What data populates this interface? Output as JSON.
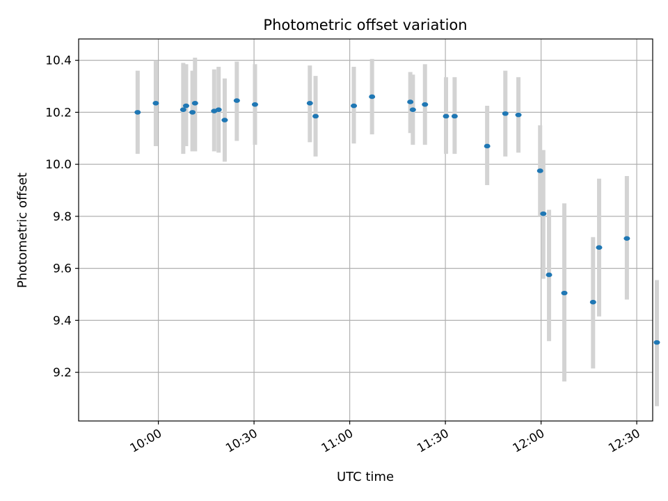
{
  "chart_data": {
    "type": "scatter",
    "title": "Photometric offset variation",
    "xlabel": "UTC time",
    "ylabel": "Photometric offset",
    "grid": true,
    "x_unit": "minutes since 00:00 UTC",
    "xlim": [
      575,
      755
    ],
    "ylim": [
      9.013,
      10.482
    ],
    "x_ticks": [
      {
        "value": 600,
        "label": "10:00"
      },
      {
        "value": 630,
        "label": "10:30"
      },
      {
        "value": 660,
        "label": "11:00"
      },
      {
        "value": 690,
        "label": "11:30"
      },
      {
        "value": 720,
        "label": "12:00"
      },
      {
        "value": 750,
        "label": "12:30"
      }
    ],
    "y_ticks": [
      {
        "value": 9.2,
        "label": "9.2"
      },
      {
        "value": 9.4,
        "label": "9.4"
      },
      {
        "value": 9.6,
        "label": "9.6"
      },
      {
        "value": 9.8,
        "label": "9.8"
      },
      {
        "value": 10.0,
        "label": "10.0"
      },
      {
        "value": 10.2,
        "label": "10.2"
      },
      {
        "value": 10.4,
        "label": "10.4"
      }
    ],
    "point_color": "#1f77b4",
    "errorbar_color": "#d3d3d3",
    "points": [
      {
        "x": 593.5,
        "y": 10.2,
        "lo": 10.04,
        "hi": 10.36
      },
      {
        "x": 599.2,
        "y": 10.235,
        "lo": 10.07,
        "hi": 10.4
      },
      {
        "x": 607.8,
        "y": 10.21,
        "lo": 10.04,
        "hi": 10.39
      },
      {
        "x": 608.7,
        "y": 10.225,
        "lo": 10.07,
        "hi": 10.385
      },
      {
        "x": 610.7,
        "y": 10.2,
        "lo": 10.05,
        "hi": 10.36
      },
      {
        "x": 611.5,
        "y": 10.235,
        "lo": 10.05,
        "hi": 10.41
      },
      {
        "x": 617.5,
        "y": 10.205,
        "lo": 10.05,
        "hi": 10.365
      },
      {
        "x": 618.9,
        "y": 10.21,
        "lo": 10.045,
        "hi": 10.375
      },
      {
        "x": 620.8,
        "y": 10.17,
        "lo": 10.01,
        "hi": 10.33
      },
      {
        "x": 624.6,
        "y": 10.245,
        "lo": 10.09,
        "hi": 10.395
      },
      {
        "x": 630.3,
        "y": 10.23,
        "lo": 10.075,
        "hi": 10.385
      },
      {
        "x": 647.5,
        "y": 10.235,
        "lo": 10.085,
        "hi": 10.38
      },
      {
        "x": 649.3,
        "y": 10.185,
        "lo": 10.03,
        "hi": 10.34
      },
      {
        "x": 661.3,
        "y": 10.225,
        "lo": 10.08,
        "hi": 10.375
      },
      {
        "x": 667.0,
        "y": 10.26,
        "lo": 10.115,
        "hi": 10.405
      },
      {
        "x": 679.0,
        "y": 10.24,
        "lo": 10.12,
        "hi": 10.355
      },
      {
        "x": 679.8,
        "y": 10.21,
        "lo": 10.075,
        "hi": 10.345
      },
      {
        "x": 683.6,
        "y": 10.23,
        "lo": 10.075,
        "hi": 10.385
      },
      {
        "x": 690.2,
        "y": 10.185,
        "lo": 10.04,
        "hi": 10.335
      },
      {
        "x": 692.9,
        "y": 10.185,
        "lo": 10.04,
        "hi": 10.335
      },
      {
        "x": 703.1,
        "y": 10.07,
        "lo": 9.92,
        "hi": 10.225
      },
      {
        "x": 708.8,
        "y": 10.195,
        "lo": 10.03,
        "hi": 10.36
      },
      {
        "x": 712.9,
        "y": 10.19,
        "lo": 10.045,
        "hi": 10.335
      },
      {
        "x": 719.7,
        "y": 9.975,
        "lo": 9.8,
        "hi": 10.15
      },
      {
        "x": 720.7,
        "y": 9.81,
        "lo": 9.56,
        "hi": 10.055
      },
      {
        "x": 722.5,
        "y": 9.575,
        "lo": 9.32,
        "hi": 9.825
      },
      {
        "x": 727.3,
        "y": 9.505,
        "lo": 9.165,
        "hi": 9.85
      },
      {
        "x": 736.3,
        "y": 9.47,
        "lo": 9.215,
        "hi": 9.72
      },
      {
        "x": 738.2,
        "y": 9.68,
        "lo": 9.415,
        "hi": 9.945
      },
      {
        "x": 746.9,
        "y": 9.715,
        "lo": 9.48,
        "hi": 9.955
      },
      {
        "x": 756.3,
        "y": 9.315,
        "lo": 9.07,
        "hi": 9.555
      }
    ]
  }
}
